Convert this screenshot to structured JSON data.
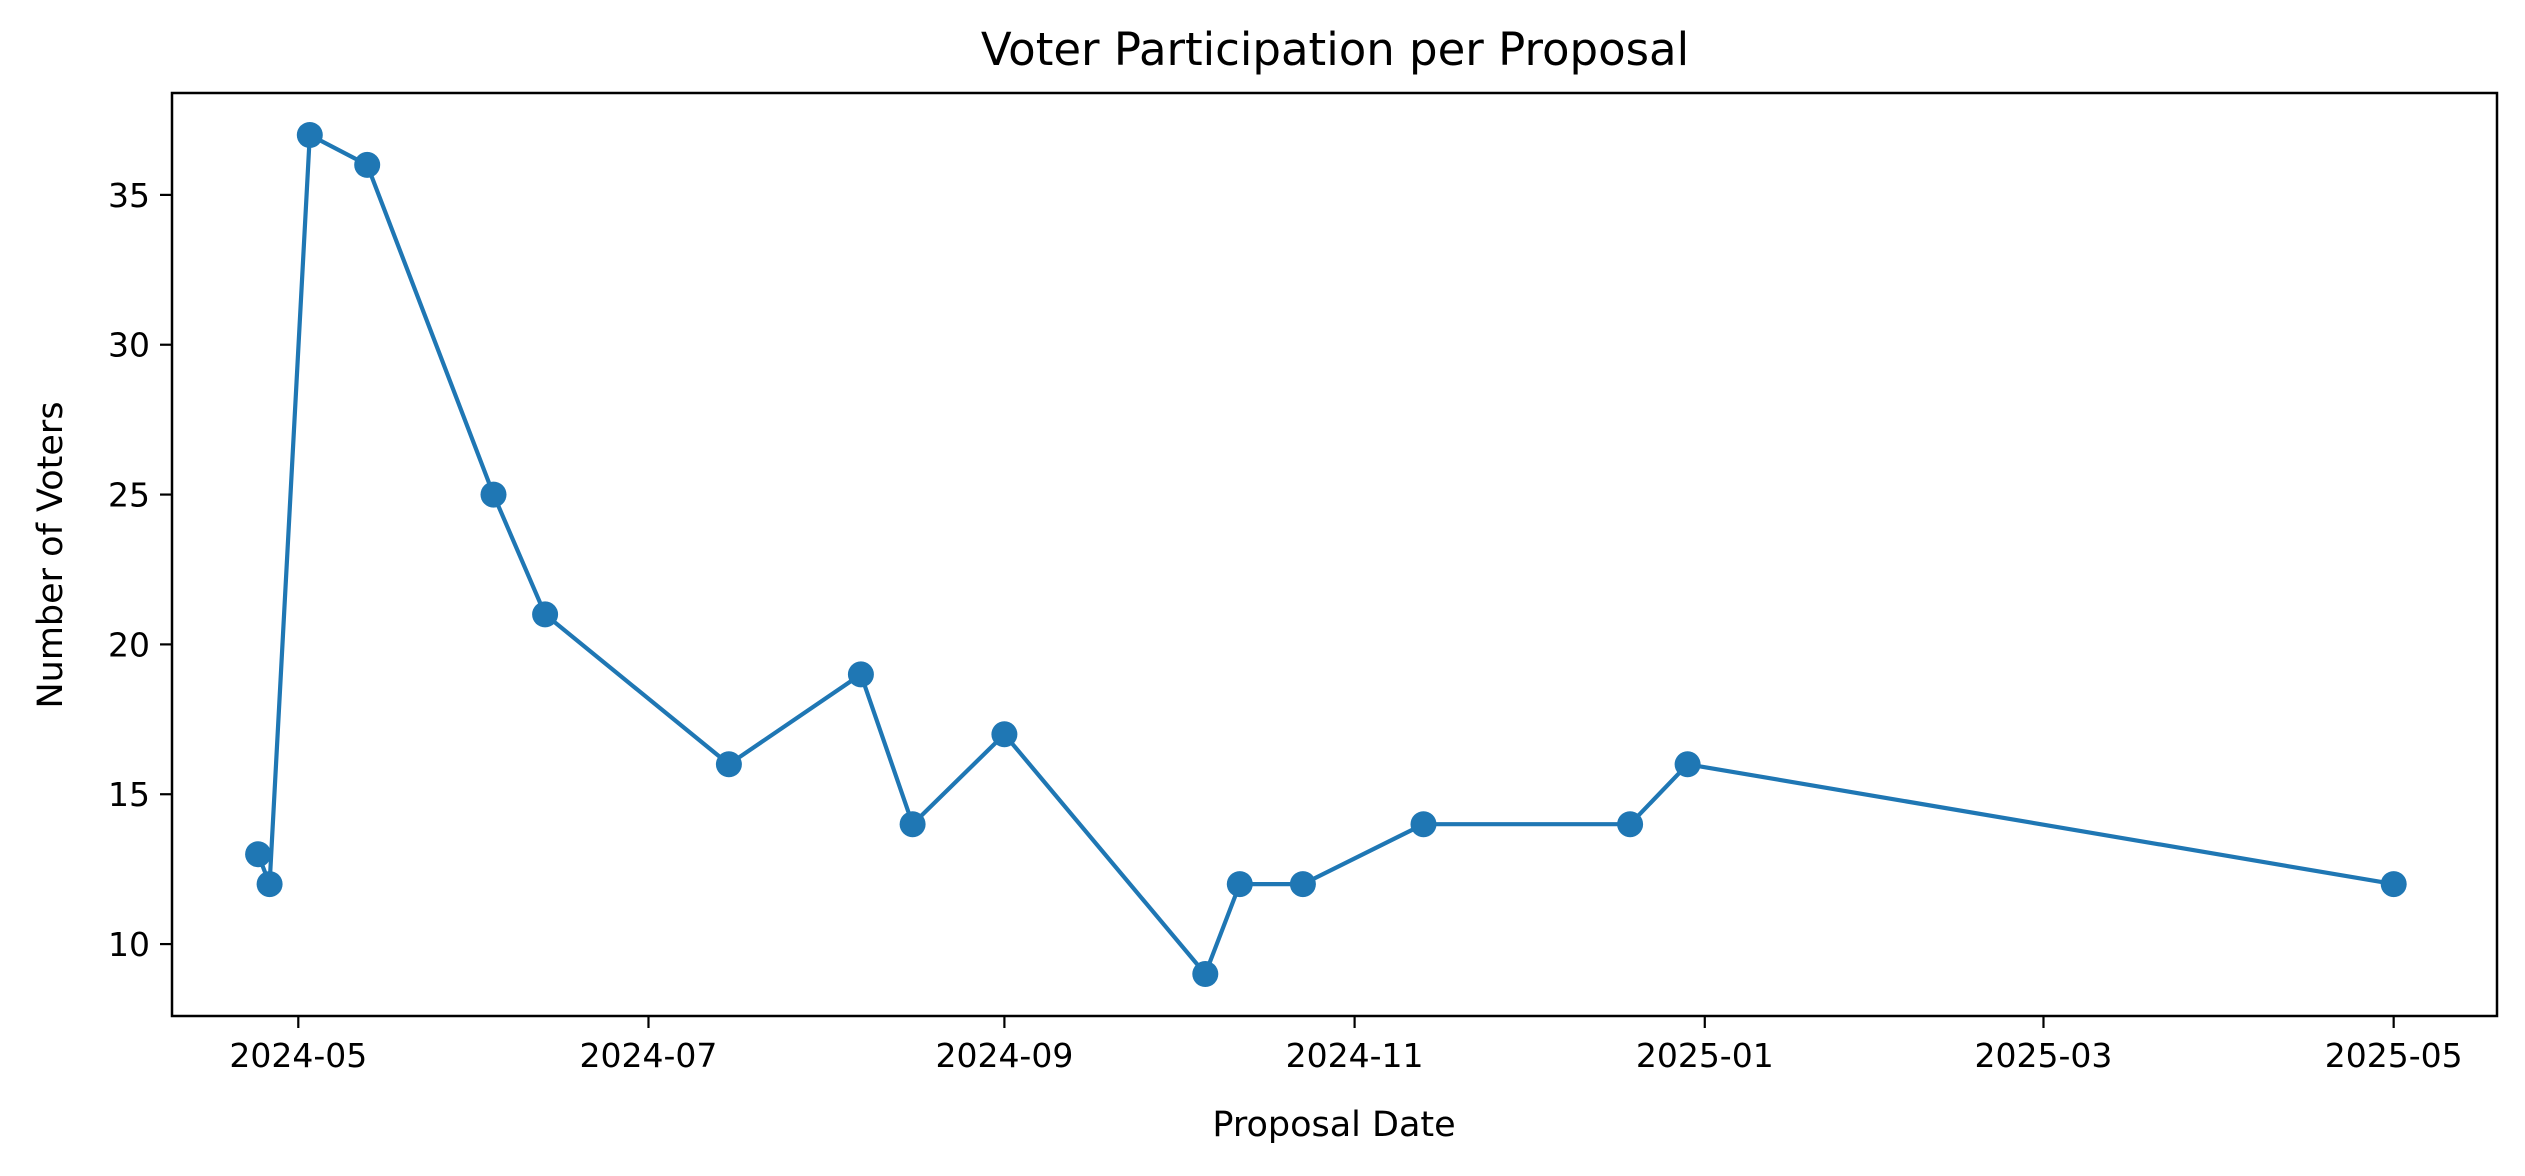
{
  "chart_data": {
    "type": "line",
    "title": "Voter Participation per Proposal",
    "xlabel": "Proposal Date",
    "ylabel": "Number of Voters",
    "x_ticks": [
      "2024-05",
      "2024-07",
      "2024-09",
      "2024-11",
      "2025-01",
      "2025-03",
      "2025-05"
    ],
    "y_ticks": [
      10,
      15,
      20,
      25,
      30,
      35
    ],
    "ylim": [
      7.6,
      38.4
    ],
    "xlim": [
      "2024-04-09",
      "2025-05-19"
    ],
    "grid": false,
    "markers": true,
    "series": [
      {
        "color": "#1f77b4",
        "points": [
          {
            "x": "2024-04-24",
            "y": 13
          },
          {
            "x": "2024-04-26",
            "y": 12
          },
          {
            "x": "2024-05-03",
            "y": 37
          },
          {
            "x": "2024-05-13",
            "y": 36
          },
          {
            "x": "2024-06-04",
            "y": 25
          },
          {
            "x": "2024-06-13",
            "y": 21
          },
          {
            "x": "2024-07-15",
            "y": 16
          },
          {
            "x": "2024-08-07",
            "y": 19
          },
          {
            "x": "2024-08-16",
            "y": 14
          },
          {
            "x": "2024-09-01",
            "y": 17
          },
          {
            "x": "2024-10-06",
            "y": 9
          },
          {
            "x": "2024-10-12",
            "y": 12
          },
          {
            "x": "2024-10-23",
            "y": 12
          },
          {
            "x": "2024-11-13",
            "y": 14
          },
          {
            "x": "2024-12-19",
            "y": 14
          },
          {
            "x": "2024-12-29",
            "y": 16
          },
          {
            "x": "2025-05-01",
            "y": 12
          }
        ]
      }
    ]
  }
}
